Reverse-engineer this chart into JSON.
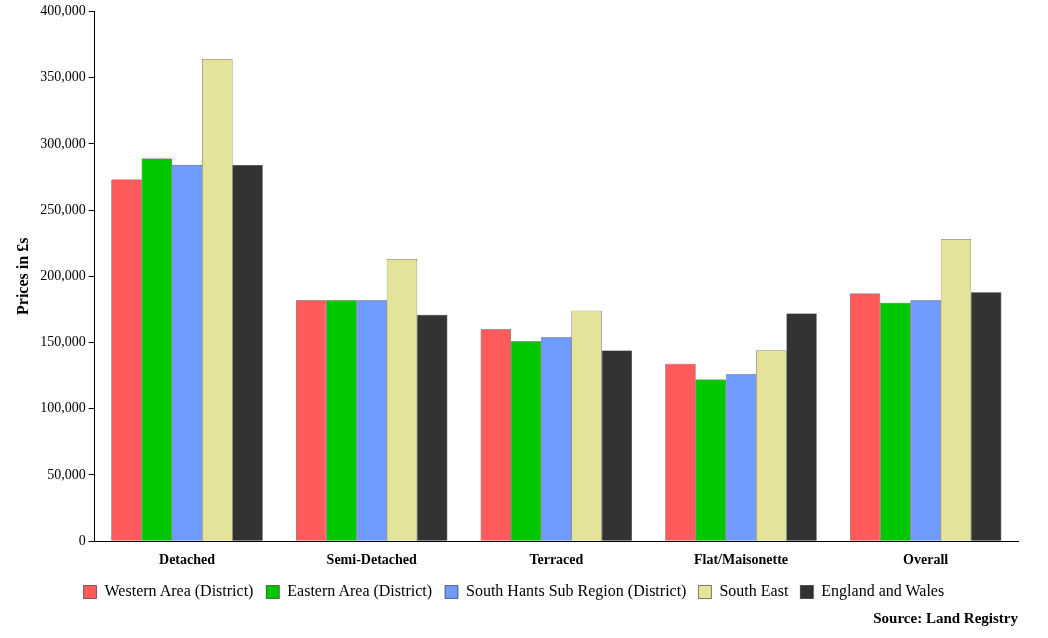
{
  "chart_data": {
    "type": "bar",
    "ylabel": "Prices in £s",
    "categories": [
      "Detached",
      "Semi-Detached",
      "Terraced",
      "Flat/Maisonette",
      "Overall"
    ],
    "series": [
      {
        "name": "Western Area (District)",
        "color": "#ff5b5b",
        "values": [
          273000,
          182000,
          160000,
          134000,
          187000
        ]
      },
      {
        "name": "Eastern Area (District)",
        "color": "#00c800",
        "values": [
          289000,
          182000,
          151000,
          122000,
          180000
        ]
      },
      {
        "name": "South Hants Sub Region (District)",
        "color": "#6f9bff",
        "values": [
          284000,
          182000,
          154000,
          126000,
          182000
        ]
      },
      {
        "name": "South East",
        "color": "#e3e39a",
        "values": [
          364000,
          213000,
          174000,
          144000,
          228000
        ]
      },
      {
        "name": "England and Wales",
        "color": "#333333",
        "values": [
          284000,
          171000,
          144000,
          172000,
          188000
        ]
      }
    ],
    "ylim": [
      0,
      400000
    ],
    "yticks": [
      {
        "value": 0,
        "label": "0"
      },
      {
        "value": 50000,
        "label": "50,000"
      },
      {
        "value": 100000,
        "label": "100,000"
      },
      {
        "value": 150000,
        "label": "150,000"
      },
      {
        "value": 200000,
        "label": "200,000"
      },
      {
        "value": 250000,
        "label": "250,000"
      },
      {
        "value": 300000,
        "label": "300,000"
      },
      {
        "value": 350000,
        "label": "350,000"
      },
      {
        "value": 400000,
        "label": "400,000"
      }
    ],
    "grid": false,
    "legend": "bottom",
    "annotations": [
      "Source: Land Registry"
    ]
  }
}
